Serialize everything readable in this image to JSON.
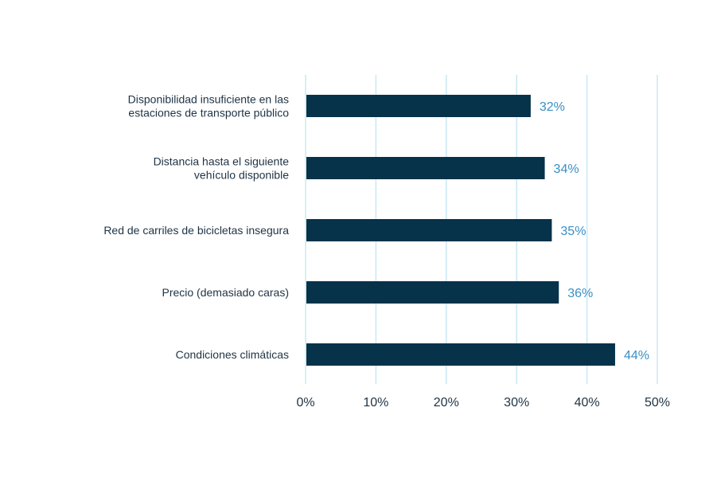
{
  "chart_data": {
    "type": "bar",
    "orientation": "horizontal",
    "categories": [
      [
        "Disponibilidad insuficiente en las",
        "estaciones de transporte público"
      ],
      [
        "Distancia hasta el siguiente",
        "vehículo disponible"
      ],
      [
        "Red de carriles de bicicletas insegura"
      ],
      [
        "Precio (demasiado caras)"
      ],
      [
        "Condiciones climáticas"
      ]
    ],
    "values": [
      32,
      34,
      35,
      36,
      44
    ],
    "data_labels": [
      "32%",
      "34%",
      "35%",
      "36%",
      "44%"
    ],
    "xlim": [
      0,
      50
    ],
    "x_ticks": [
      0,
      10,
      20,
      30,
      40,
      50
    ],
    "x_tick_labels": [
      "0%",
      "10%",
      "20%",
      "30%",
      "40%",
      "50%"
    ],
    "title": "",
    "xlabel": "",
    "ylabel": "",
    "grid": "vertical",
    "legend": "none",
    "colors": {
      "bar": "#06324a",
      "gridline": "#c8e8f4",
      "data_label": "#3a8fc4",
      "text": "#1f3344"
    }
  }
}
